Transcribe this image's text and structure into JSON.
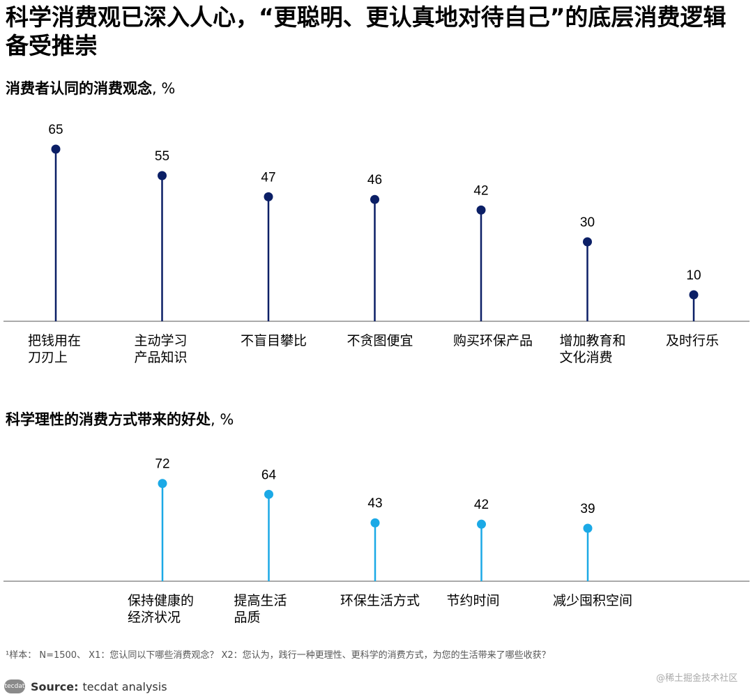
{
  "title": "科学消费观已深入人心，“更聪明、更认真地对待自己”的底层消费逻辑备受推崇",
  "colors": {
    "series1": "#0b1f66",
    "series2": "#1ba9e6",
    "axis": "#555555"
  },
  "chart_data": [
    {
      "type": "lollipop",
      "title": "消费者认同的消费观念",
      "unit": ", %",
      "categories": [
        [
          "把钱用在",
          "刀刃上"
        ],
        [
          "主动学习",
          "产品知识"
        ],
        [
          "不盲目攀比"
        ],
        [
          "不贪图便宜"
        ],
        [
          "购买环保产品"
        ],
        [
          "增加教育和",
          "文化消费"
        ],
        [
          "及时行乐"
        ]
      ],
      "values": [
        65,
        55,
        47,
        46,
        42,
        30,
        10
      ],
      "ylim": [
        0,
        70
      ]
    },
    {
      "type": "lollipop",
      "title": "科学理性的消费方式带来的好处",
      "unit": ", %",
      "categories": [
        [
          "保持健康的",
          "经济状况"
        ],
        [
          "提高生活",
          "品质"
        ],
        [
          "环保生活方式"
        ],
        [
          "节约时间"
        ],
        [
          "减少囤积空间"
        ]
      ],
      "values": [
        72,
        64,
        43,
        42,
        39
      ],
      "ylim": [
        0,
        77
      ]
    }
  ],
  "footnote": "¹样本： N=1500、 X1：您认同以下哪些消费观念？ X2：您认为，践行一种更理性、更科学的消费方式，为您的生活带来了哪些收获？",
  "source": {
    "logo": "tecdat",
    "label": "Source:",
    "text": "tecdat analysis"
  },
  "watermark": "@稀土掘金技术社区"
}
